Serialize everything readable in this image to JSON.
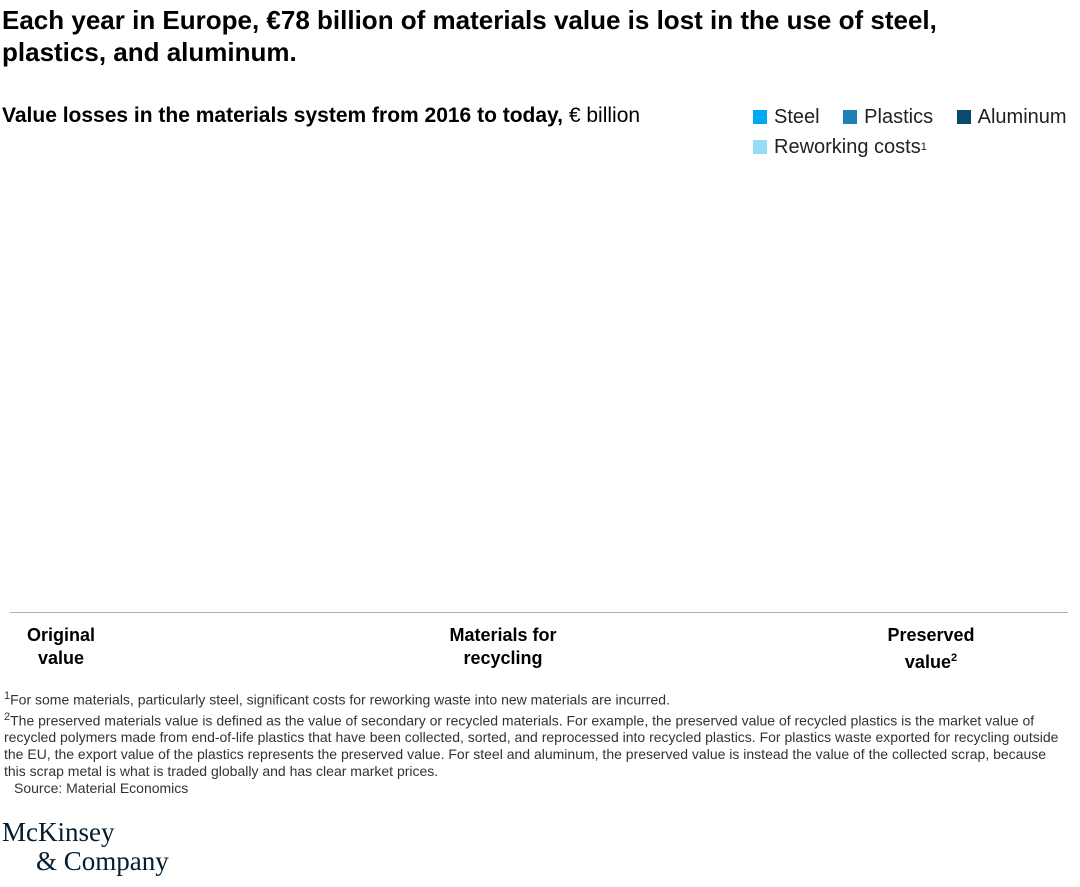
{
  "title": "Each year in Europe, €78 billion of materials value is lost in the use of steel, plastics, and aluminum.",
  "chart_data": {
    "type": "bar",
    "title": "Value losses in the materials system from 2016 to today,",
    "unit": "€ billion",
    "categories": [
      "Original value",
      "Materials for recycling",
      "Preserved value"
    ],
    "category_superscripts": [
      "",
      "",
      "2"
    ],
    "series": [
      {
        "name": "Steel",
        "color": "#00a9f4"
      },
      {
        "name": "Plastics",
        "color": "#1f80b8"
      },
      {
        "name": "Aluminum",
        "color": "#0b4a6e"
      },
      {
        "name": "Reworking costs",
        "superscript": "1",
        "color": "#99dcf7"
      }
    ],
    "legend_position": "top-right",
    "grid": false
  },
  "footnotes": [
    {
      "mark": "1",
      "text": "For some materials, particularly steel, significant costs for reworking waste into new materials are incurred."
    },
    {
      "mark": "2",
      "text": "The preserved materials value is defined as the value of secondary or recycled materials. For example, the preserved value of recycled plastics is the market value of recycled polymers made from end-of-life plastics that have been collected, sorted, and reprocessed into recycled plastics. For plastics waste exported for recycling outside the EU, the export value of the plastics represents the preserved value. For steel and aluminum, the preserved value is instead the value of the collected scrap, because this scrap metal is what is traded globally and has clear market prices."
    }
  ],
  "source": "Source: Material Economics",
  "logo": {
    "line1": "McKinsey",
    "line2": "& Company"
  }
}
